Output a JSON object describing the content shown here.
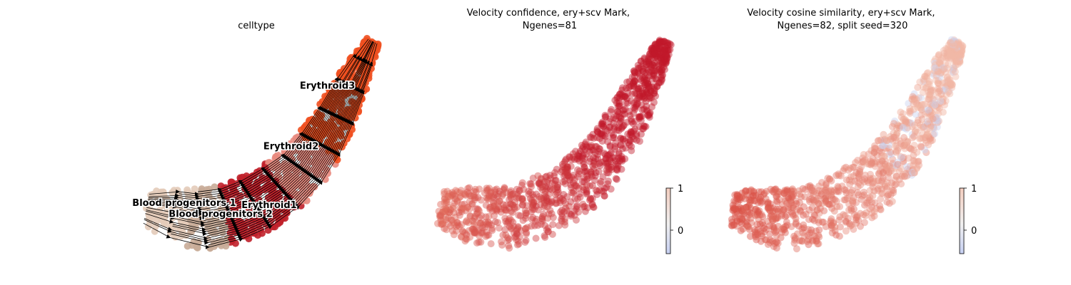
{
  "chart_data": [
    {
      "type": "scatter",
      "title": "celltype",
      "colors": {
        "Blood progenitors 1": "#e3cbb9",
        "Blood progenitors 2": "#c8ab97",
        "Erythroid1": "#c0202a",
        "Erythroid2": "#e88a7e",
        "Erythroid3": "#f05020"
      },
      "annotations": [
        {
          "text": "Erythroid3",
          "x": 0.79,
          "y": 0.74
        },
        {
          "text": "Erythroid2",
          "x": 0.64,
          "y": 0.46
        },
        {
          "text": "Blood progenitors 1",
          "x": 0.2,
          "y": 0.2
        },
        {
          "text": "Erythroid1",
          "x": 0.55,
          "y": 0.19
        },
        {
          "text": "Blood progenitors 2",
          "x": 0.35,
          "y": 0.15
        }
      ],
      "overlay": "velocity streamlines",
      "axes": "off"
    },
    {
      "type": "scatter",
      "title": "Velocity confidence, ery+scv Mark,\nNgenes=81",
      "colormap": "coolwarm",
      "colorbar": {
        "ticks": [
          1,
          0
        ]
      },
      "axes": "off"
    },
    {
      "type": "scatter",
      "title": "Velocity cosine similarity, ery+scv Mark,\nNgenes=82, split seed=320",
      "colormap": "coolwarm",
      "colorbar": {
        "ticks": [
          1,
          0
        ]
      },
      "axes": "off"
    }
  ]
}
